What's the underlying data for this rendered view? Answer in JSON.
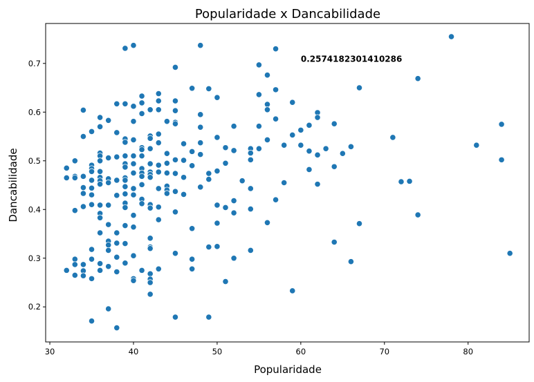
{
  "chart_data": {
    "type": "scatter",
    "title": "Popularidade x Dancabilidade",
    "xlabel": "Popularidade",
    "ylabel": "Dancabilidade",
    "xlim": [
      29.5,
      87.3
    ],
    "ylim": [
      0.128,
      0.782
    ],
    "xticks": [
      30,
      40,
      50,
      60,
      70,
      80
    ],
    "yticks": [
      0.2,
      0.3,
      0.4,
      0.5,
      0.6,
      0.7
    ],
    "grid": false,
    "annotation": {
      "text": "0.2574182301410286",
      "x": 60,
      "y": 0.703
    },
    "marker_color": "#1f77b4",
    "points": [
      [
        32,
        0.485
      ],
      [
        32,
        0.465
      ],
      [
        32,
        0.275
      ],
      [
        33,
        0.5
      ],
      [
        33,
        0.468
      ],
      [
        33,
        0.465
      ],
      [
        33,
        0.398
      ],
      [
        33,
        0.298
      ],
      [
        33,
        0.287
      ],
      [
        33,
        0.265
      ],
      [
        34,
        0.604
      ],
      [
        34,
        0.55
      ],
      [
        34,
        0.468
      ],
      [
        34,
        0.445
      ],
      [
        34,
        0.433
      ],
      [
        34,
        0.406
      ],
      [
        34,
        0.287
      ],
      [
        34,
        0.274
      ],
      [
        34,
        0.264
      ],
      [
        35,
        0.56
      ],
      [
        35,
        0.491
      ],
      [
        35,
        0.484
      ],
      [
        35,
        0.478
      ],
      [
        35,
        0.46
      ],
      [
        35,
        0.444
      ],
      [
        35,
        0.43
      ],
      [
        35,
        0.41
      ],
      [
        35,
        0.318
      ],
      [
        35,
        0.298
      ],
      [
        35,
        0.258
      ],
      [
        35,
        0.171
      ],
      [
        36,
        0.589
      ],
      [
        36,
        0.57
      ],
      [
        36,
        0.516
      ],
      [
        36,
        0.51
      ],
      [
        36,
        0.5
      ],
      [
        36,
        0.478
      ],
      [
        36,
        0.466
      ],
      [
        36,
        0.459
      ],
      [
        36,
        0.452
      ],
      [
        36,
        0.409
      ],
      [
        36,
        0.392
      ],
      [
        36,
        0.383
      ],
      [
        36,
        0.352
      ],
      [
        36,
        0.289
      ],
      [
        36,
        0.275
      ],
      [
        37,
        0.583
      ],
      [
        37,
        0.506
      ],
      [
        37,
        0.463
      ],
      [
        37,
        0.455
      ],
      [
        37,
        0.409
      ],
      [
        37,
        0.369
      ],
      [
        37,
        0.335
      ],
      [
        37,
        0.327
      ],
      [
        37,
        0.316
      ],
      [
        37,
        0.283
      ],
      [
        37,
        0.196
      ],
      [
        38,
        0.617
      ],
      [
        38,
        0.558
      ],
      [
        38,
        0.508
      ],
      [
        38,
        0.46
      ],
      [
        38,
        0.429
      ],
      [
        38,
        0.352
      ],
      [
        38,
        0.331
      ],
      [
        38,
        0.302
      ],
      [
        38,
        0.272
      ],
      [
        38,
        0.157
      ],
      [
        39,
        0.731
      ],
      [
        39,
        0.617
      ],
      [
        39,
        0.545
      ],
      [
        39,
        0.538
      ],
      [
        39,
        0.51
      ],
      [
        39,
        0.494
      ],
      [
        39,
        0.487
      ],
      [
        39,
        0.465
      ],
      [
        39,
        0.46
      ],
      [
        39,
        0.447
      ],
      [
        39,
        0.432
      ],
      [
        39,
        0.413
      ],
      [
        39,
        0.404
      ],
      [
        39,
        0.367
      ],
      [
        39,
        0.33
      ],
      [
        39,
        0.29
      ],
      [
        40,
        0.737
      ],
      [
        40,
        0.612
      ],
      [
        40,
        0.581
      ],
      [
        40,
        0.543
      ],
      [
        40,
        0.51
      ],
      [
        40,
        0.494
      ],
      [
        40,
        0.475
      ],
      [
        40,
        0.443
      ],
      [
        40,
        0.43
      ],
      [
        40,
        0.388
      ],
      [
        40,
        0.364
      ],
      [
        40,
        0.305
      ],
      [
        40,
        0.258
      ],
      [
        40,
        0.254
      ],
      [
        41,
        0.633
      ],
      [
        41,
        0.619
      ],
      [
        41,
        0.597
      ],
      [
        41,
        0.527
      ],
      [
        41,
        0.523
      ],
      [
        41,
        0.51
      ],
      [
        41,
        0.484
      ],
      [
        41,
        0.475
      ],
      [
        41,
        0.468
      ],
      [
        41,
        0.451
      ],
      [
        41,
        0.421
      ],
      [
        41,
        0.412
      ],
      [
        41,
        0.275
      ],
      [
        42,
        0.605
      ],
      [
        42,
        0.551
      ],
      [
        42,
        0.546
      ],
      [
        42,
        0.525
      ],
      [
        42,
        0.494
      ],
      [
        42,
        0.477
      ],
      [
        42,
        0.472
      ],
      [
        42,
        0.466
      ],
      [
        42,
        0.41
      ],
      [
        42,
        0.403
      ],
      [
        42,
        0.341
      ],
      [
        42,
        0.323
      ],
      [
        42,
        0.32
      ],
      [
        42,
        0.268
      ],
      [
        42,
        0.257
      ],
      [
        42,
        0.25
      ],
      [
        42,
        0.226
      ],
      [
        43,
        0.638
      ],
      [
        43,
        0.623
      ],
      [
        43,
        0.605
      ],
      [
        43,
        0.555
      ],
      [
        43,
        0.537
      ],
      [
        43,
        0.491
      ],
      [
        43,
        0.477
      ],
      [
        43,
        0.443
      ],
      [
        43,
        0.405
      ],
      [
        43,
        0.379
      ],
      [
        43,
        0.278
      ],
      [
        44,
        0.581
      ],
      [
        44,
        0.515
      ],
      [
        44,
        0.495
      ],
      [
        44,
        0.475
      ],
      [
        44,
        0.448
      ],
      [
        44,
        0.44
      ],
      [
        44,
        0.433
      ],
      [
        45,
        0.692
      ],
      [
        45,
        0.623
      ],
      [
        45,
        0.603
      ],
      [
        45,
        0.579
      ],
      [
        45,
        0.576
      ],
      [
        45,
        0.502
      ],
      [
        45,
        0.474
      ],
      [
        45,
        0.437
      ],
      [
        45,
        0.395
      ],
      [
        45,
        0.31
      ],
      [
        45,
        0.179
      ],
      [
        46,
        0.535
      ],
      [
        46,
        0.501
      ],
      [
        46,
        0.466
      ],
      [
        46,
        0.431
      ],
      [
        47,
        0.649
      ],
      [
        47,
        0.519
      ],
      [
        47,
        0.49
      ],
      [
        47,
        0.361
      ],
      [
        47,
        0.298
      ],
      [
        47,
        0.278
      ],
      [
        48,
        0.737
      ],
      [
        48,
        0.595
      ],
      [
        48,
        0.569
      ],
      [
        48,
        0.537
      ],
      [
        48,
        0.513
      ],
      [
        48,
        0.446
      ],
      [
        49,
        0.648
      ],
      [
        49,
        0.474
      ],
      [
        49,
        0.462
      ],
      [
        49,
        0.323
      ],
      [
        49,
        0.179
      ],
      [
        50,
        0.63
      ],
      [
        50,
        0.548
      ],
      [
        50,
        0.479
      ],
      [
        50,
        0.409
      ],
      [
        50,
        0.372
      ],
      [
        50,
        0.324
      ],
      [
        51,
        0.527
      ],
      [
        51,
        0.495
      ],
      [
        51,
        0.404
      ],
      [
        51,
        0.252
      ],
      [
        52,
        0.571
      ],
      [
        52,
        0.521
      ],
      [
        52,
        0.418
      ],
      [
        52,
        0.393
      ],
      [
        52,
        0.3
      ],
      [
        53,
        0.459
      ],
      [
        54,
        0.525
      ],
      [
        54,
        0.516
      ],
      [
        54,
        0.502
      ],
      [
        54,
        0.443
      ],
      [
        54,
        0.401
      ],
      [
        54,
        0.316
      ],
      [
        55,
        0.697
      ],
      [
        55,
        0.636
      ],
      [
        55,
        0.571
      ],
      [
        55,
        0.525
      ],
      [
        56,
        0.676
      ],
      [
        56,
        0.616
      ],
      [
        56,
        0.605
      ],
      [
        56,
        0.543
      ],
      [
        56,
        0.373
      ],
      [
        57,
        0.73
      ],
      [
        57,
        0.646
      ],
      [
        57,
        0.586
      ],
      [
        57,
        0.42
      ],
      [
        58,
        0.532
      ],
      [
        58,
        0.455
      ],
      [
        59,
        0.62
      ],
      [
        59,
        0.553
      ],
      [
        59,
        0.233
      ],
      [
        60,
        0.563
      ],
      [
        60,
        0.532
      ],
      [
        61,
        0.573
      ],
      [
        61,
        0.52
      ],
      [
        61,
        0.482
      ],
      [
        62,
        0.599
      ],
      [
        62,
        0.589
      ],
      [
        62,
        0.512
      ],
      [
        62,
        0.452
      ],
      [
        63,
        0.525
      ],
      [
        64,
        0.576
      ],
      [
        64,
        0.488
      ],
      [
        64,
        0.333
      ],
      [
        65,
        0.515
      ],
      [
        66,
        0.529
      ],
      [
        66,
        0.293
      ],
      [
        67,
        0.65
      ],
      [
        67,
        0.371
      ],
      [
        71,
        0.548
      ],
      [
        72,
        0.457
      ],
      [
        73,
        0.458
      ],
      [
        74,
        0.669
      ],
      [
        74,
        0.389
      ],
      [
        78,
        0.755
      ],
      [
        81,
        0.532
      ],
      [
        84,
        0.575
      ],
      [
        84,
        0.502
      ],
      [
        85,
        0.31
      ]
    ]
  }
}
